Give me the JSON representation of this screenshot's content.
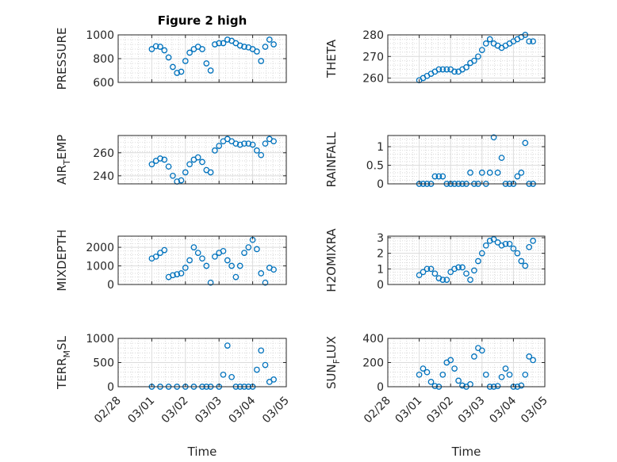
{
  "chart_data": {
    "type": "scatter",
    "title": "Figure 2 high",
    "xlabel": "Time",
    "x_tick_labels": [
      "02/28",
      "03/01",
      "03/02",
      "03/03",
      "03/04",
      "03/05"
    ],
    "marker": "open-circle",
    "color": "#0072BD",
    "grid": true,
    "subplots": [
      {
        "ylabel": "PRESSURE",
        "ylim": [
          600,
          1000
        ],
        "yticks": [
          600,
          800,
          1000
        ],
        "x": [
          "03/01 00:00",
          "03/01 03:00",
          "03/01 06:00",
          "03/01 09:00",
          "03/01 12:00",
          "03/01 15:00",
          "03/01 18:00",
          "03/01 21:00",
          "03/02 00:00",
          "03/02 03:00",
          "03/02 06:00",
          "03/02 09:00",
          "03/02 12:00",
          "03/02 15:00",
          "03/02 18:00",
          "03/02 21:00",
          "03/03 00:00",
          "03/03 03:00",
          "03/03 06:00",
          "03/03 09:00",
          "03/03 12:00",
          "03/03 15:00",
          "03/03 18:00",
          "03/03 21:00",
          "03/04 00:00",
          "03/04 03:00",
          "03/04 06:00",
          "03/04 09:00",
          "03/04 12:00",
          "03/04 15:00"
        ],
        "y": [
          880,
          905,
          900,
          870,
          810,
          730,
          680,
          690,
          780,
          850,
          880,
          900,
          880,
          760,
          700,
          920,
          930,
          930,
          960,
          950,
          930,
          910,
          900,
          895,
          880,
          860,
          780,
          900,
          960,
          920
        ]
      },
      {
        "ylabel": "THETA",
        "ylim": [
          258,
          280
        ],
        "yticks": [
          260,
          270,
          280
        ],
        "x": [
          "03/01 00:00",
          "03/01 03:00",
          "03/01 06:00",
          "03/01 09:00",
          "03/01 12:00",
          "03/01 15:00",
          "03/01 18:00",
          "03/01 21:00",
          "03/02 00:00",
          "03/02 03:00",
          "03/02 06:00",
          "03/02 09:00",
          "03/02 12:00",
          "03/02 15:00",
          "03/02 18:00",
          "03/02 21:00",
          "03/03 00:00",
          "03/03 03:00",
          "03/03 06:00",
          "03/03 09:00",
          "03/03 12:00",
          "03/03 15:00",
          "03/03 18:00",
          "03/03 21:00",
          "03/04 00:00",
          "03/04 03:00",
          "03/04 06:00",
          "03/04 09:00",
          "03/04 12:00",
          "03/04 15:00"
        ],
        "y": [
          259,
          260,
          261,
          262,
          263,
          264,
          264,
          264,
          264,
          263,
          263,
          264,
          265,
          267,
          268,
          270,
          273,
          276,
          278,
          276,
          275,
          274,
          275,
          276,
          277,
          278,
          279,
          280,
          277,
          277
        ]
      },
      {
        "ylabel": "AIR_TEMP",
        "ylim": [
          233,
          275
        ],
        "yticks": [
          240,
          260
        ],
        "x": [
          "03/01 00:00",
          "03/01 03:00",
          "03/01 06:00",
          "03/01 09:00",
          "03/01 12:00",
          "03/01 15:00",
          "03/01 18:00",
          "03/01 21:00",
          "03/02 00:00",
          "03/02 03:00",
          "03/02 06:00",
          "03/02 09:00",
          "03/02 12:00",
          "03/02 15:00",
          "03/02 18:00",
          "03/02 21:00",
          "03/03 00:00",
          "03/03 03:00",
          "03/03 06:00",
          "03/03 09:00",
          "03/03 12:00",
          "03/03 15:00",
          "03/03 18:00",
          "03/03 21:00",
          "03/04 00:00",
          "03/04 03:00",
          "03/04 06:00",
          "03/04 09:00",
          "03/04 12:00",
          "03/04 15:00"
        ],
        "y": [
          250,
          253,
          255,
          254,
          248,
          240,
          235,
          236,
          243,
          250,
          254,
          256,
          252,
          245,
          243,
          262,
          266,
          270,
          272,
          270,
          268,
          267,
          268,
          268,
          267,
          262,
          258,
          268,
          272,
          270
        ]
      },
      {
        "ylabel": "RAINFALL",
        "ylim": [
          0,
          1.3
        ],
        "yticks": [
          0,
          0.5,
          1
        ],
        "x": [
          "03/01 00:00",
          "03/01 03:00",
          "03/01 06:00",
          "03/01 09:00",
          "03/01 12:00",
          "03/01 15:00",
          "03/01 18:00",
          "03/01 21:00",
          "03/02 00:00",
          "03/02 03:00",
          "03/02 06:00",
          "03/02 09:00",
          "03/02 12:00",
          "03/02 15:00",
          "03/02 18:00",
          "03/02 21:00",
          "03/03 00:00",
          "03/03 03:00",
          "03/03 06:00",
          "03/03 09:00",
          "03/03 12:00",
          "03/03 15:00",
          "03/03 18:00",
          "03/03 21:00",
          "03/04 00:00",
          "03/04 03:00",
          "03/04 06:00",
          "03/04 09:00",
          "03/04 12:00",
          "03/04 15:00"
        ],
        "y": [
          0,
          0,
          0,
          0,
          0.2,
          0.2,
          0.2,
          0,
          0,
          0,
          0,
          0,
          0,
          0.3,
          0,
          0,
          0.3,
          0,
          0.3,
          1.25,
          0.3,
          0.7,
          0,
          0,
          0,
          0.2,
          0.3,
          1.1,
          0,
          0
        ]
      },
      {
        "ylabel": "MIXDEPTH",
        "ylim": [
          0,
          2600
        ],
        "yticks": [
          0,
          1000,
          2000
        ],
        "x": [
          "03/01 00:00",
          "03/01 03:00",
          "03/01 06:00",
          "03/01 09:00",
          "03/01 12:00",
          "03/01 15:00",
          "03/01 18:00",
          "03/01 21:00",
          "03/02 00:00",
          "03/02 03:00",
          "03/02 06:00",
          "03/02 09:00",
          "03/02 12:00",
          "03/02 15:00",
          "03/02 18:00",
          "03/02 21:00",
          "03/03 00:00",
          "03/03 03:00",
          "03/03 06:00",
          "03/03 09:00",
          "03/03 12:00",
          "03/03 15:00",
          "03/03 18:00",
          "03/03 21:00",
          "03/04 00:00",
          "03/04 03:00",
          "03/04 06:00",
          "03/04 09:00",
          "03/04 12:00",
          "03/04 15:00"
        ],
        "y": [
          1400,
          1500,
          1700,
          1850,
          400,
          500,
          550,
          600,
          900,
          1300,
          2000,
          1700,
          1400,
          1000,
          100,
          1500,
          1700,
          1800,
          1300,
          1000,
          400,
          1000,
          1700,
          2000,
          2400,
          1900,
          600,
          100,
          900,
          800
        ]
      },
      {
        "ylabel": "H2OMIXRA",
        "ylim": [
          0,
          3.1
        ],
        "yticks": [
          0,
          1,
          2,
          3
        ],
        "x": [
          "03/01 00:00",
          "03/01 03:00",
          "03/01 06:00",
          "03/01 09:00",
          "03/01 12:00",
          "03/01 15:00",
          "03/01 18:00",
          "03/01 21:00",
          "03/02 00:00",
          "03/02 03:00",
          "03/02 06:00",
          "03/02 09:00",
          "03/02 12:00",
          "03/02 15:00",
          "03/02 18:00",
          "03/02 21:00",
          "03/03 00:00",
          "03/03 03:00",
          "03/03 06:00",
          "03/03 09:00",
          "03/03 12:00",
          "03/03 15:00",
          "03/03 18:00",
          "03/03 21:00",
          "03/04 00:00",
          "03/04 03:00",
          "03/04 06:00",
          "03/04 09:00",
          "03/04 12:00",
          "03/04 15:00"
        ],
        "y": [
          0.6,
          0.8,
          1.0,
          1.0,
          0.7,
          0.4,
          0.3,
          0.3,
          0.8,
          1.0,
          1.1,
          1.1,
          0.7,
          0.3,
          0.9,
          1.5,
          2.0,
          2.5,
          2.8,
          2.9,
          2.7,
          2.5,
          2.6,
          2.6,
          2.3,
          2.0,
          1.5,
          1.2,
          2.4,
          2.8
        ]
      },
      {
        "ylabel": "TERR_MSL",
        "ylim": [
          0,
          1000
        ],
        "yticks": [
          0,
          500,
          1000
        ],
        "x": [
          "03/01 00:00",
          "03/01 06:00",
          "03/01 12:00",
          "03/01 18:00",
          "03/02 00:00",
          "03/02 06:00",
          "03/02 12:00",
          "03/02 15:00",
          "03/02 18:00",
          "03/03 00:00",
          "03/03 03:00",
          "03/03 06:00",
          "03/03 09:00",
          "03/03 12:00",
          "03/03 15:00",
          "03/03 18:00",
          "03/03 21:00",
          "03/04 00:00",
          "03/04 03:00",
          "03/04 06:00",
          "03/04 09:00",
          "03/04 12:00",
          "03/04 15:00"
        ],
        "y": [
          0,
          0,
          0,
          0,
          0,
          0,
          0,
          0,
          0,
          0,
          250,
          850,
          200,
          0,
          0,
          0,
          0,
          0,
          350,
          750,
          450,
          100,
          150
        ]
      },
      {
        "ylabel": "SUN_FLUX",
        "ylim": [
          0,
          400
        ],
        "yticks": [
          0,
          200,
          400
        ],
        "x": [
          "03/01 00:00",
          "03/01 03:00",
          "03/01 06:00",
          "03/01 09:00",
          "03/01 12:00",
          "03/01 15:00",
          "03/01 18:00",
          "03/01 21:00",
          "03/02 00:00",
          "03/02 03:00",
          "03/02 06:00",
          "03/02 09:00",
          "03/02 12:00",
          "03/02 15:00",
          "03/02 18:00",
          "03/02 21:00",
          "03/03 00:00",
          "03/03 03:00",
          "03/03 06:00",
          "03/03 09:00",
          "03/03 12:00",
          "03/03 15:00",
          "03/03 18:00",
          "03/03 21:00",
          "03/04 00:00",
          "03/04 03:00",
          "03/04 06:00",
          "03/04 09:00",
          "03/04 12:00",
          "03/04 15:00"
        ],
        "y": [
          100,
          150,
          120,
          40,
          5,
          0,
          100,
          200,
          220,
          150,
          50,
          10,
          0,
          20,
          250,
          320,
          300,
          100,
          0,
          0,
          5,
          80,
          150,
          100,
          0,
          0,
          10,
          100,
          250,
          220
        ]
      }
    ]
  }
}
